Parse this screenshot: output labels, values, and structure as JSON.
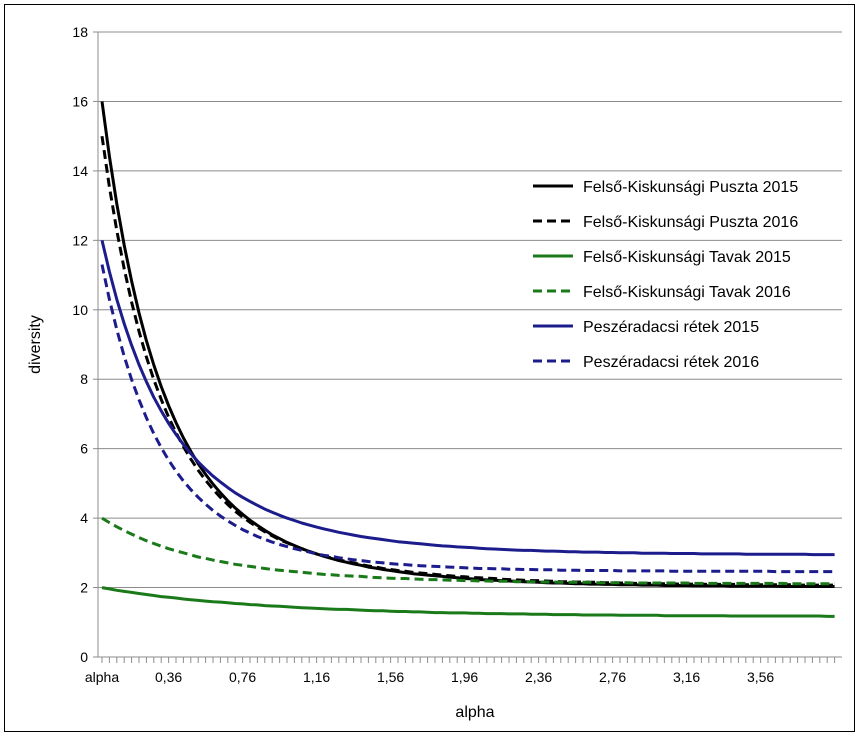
{
  "chart_data": {
    "type": "line",
    "xlabel": "alpha",
    "ylabel": "diversity",
    "ylim": [
      0,
      18
    ],
    "y_ticks": [
      0,
      2,
      4,
      6,
      8,
      10,
      12,
      14,
      16,
      18
    ],
    "xlim": [
      0,
      4
    ],
    "x_ticks": [
      0,
      0.36,
      0.76,
      1.16,
      1.56,
      1.96,
      2.36,
      2.76,
      3.16,
      3.56
    ],
    "x_tick_labels": [
      "alpha",
      "0,36",
      "0,76",
      "1,16",
      "1,56",
      "1,96",
      "2,36",
      "2,76",
      "3,16",
      "3,56"
    ],
    "grid": true,
    "legend_position": "right",
    "x": [
      0,
      0.04,
      0.08,
      0.12,
      0.16,
      0.2,
      0.24,
      0.28,
      0.32,
      0.36,
      0.4,
      0.44,
      0.48,
      0.52,
      0.56,
      0.6,
      0.64,
      0.68,
      0.72,
      0.76,
      0.8,
      0.84,
      0.88,
      0.92,
      0.96,
      1.0,
      1.04,
      1.08,
      1.12,
      1.16,
      1.2,
      1.24,
      1.28,
      1.32,
      1.36,
      1.4,
      1.44,
      1.48,
      1.52,
      1.56,
      1.6,
      1.64,
      1.68,
      1.72,
      1.76,
      1.8,
      1.84,
      1.88,
      1.92,
      1.96,
      2.0,
      2.04,
      2.08,
      2.12,
      2.16,
      2.2,
      2.24,
      2.28,
      2.32,
      2.36,
      2.4,
      2.44,
      2.48,
      2.52,
      2.56,
      2.6,
      2.64,
      2.68,
      2.72,
      2.76,
      2.8,
      2.84,
      2.88,
      2.92,
      2.96,
      3.0,
      3.04,
      3.08,
      3.12,
      3.16,
      3.2,
      3.24,
      3.28,
      3.32,
      3.36,
      3.4,
      3.44,
      3.48,
      3.52,
      3.56,
      3.6,
      3.64,
      3.68,
      3.72,
      3.76,
      3.8,
      3.84,
      3.88,
      3.92,
      3.96
    ],
    "series": [
      {
        "name": "Felső-Kiskunsági Puszta 2015",
        "color": "#000000",
        "dashed": false,
        "values": [
          16.0,
          14.42,
          13.05,
          11.86,
          10.83,
          9.91,
          9.11,
          8.41,
          7.79,
          7.24,
          6.75,
          6.31,
          5.92,
          5.57,
          5.26,
          4.98,
          4.73,
          4.5,
          4.29,
          4.11,
          3.94,
          3.79,
          3.65,
          3.52,
          3.41,
          3.3,
          3.21,
          3.12,
          3.04,
          2.97,
          2.9,
          2.84,
          2.78,
          2.73,
          2.68,
          2.64,
          2.59,
          2.56,
          2.52,
          2.49,
          2.46,
          2.43,
          2.4,
          2.38,
          2.36,
          2.34,
          2.32,
          2.3,
          2.28,
          2.26,
          2.25,
          2.23,
          2.22,
          2.21,
          2.2,
          2.19,
          2.18,
          2.17,
          2.16,
          2.15,
          2.14,
          2.13,
          2.13,
          2.12,
          2.11,
          2.11,
          2.1,
          2.1,
          2.09,
          2.09,
          2.08,
          2.08,
          2.08,
          2.07,
          2.07,
          2.07,
          2.06,
          2.06,
          2.06,
          2.06,
          2.05,
          2.05,
          2.05,
          2.05,
          2.05,
          2.04,
          2.04,
          2.04,
          2.04,
          2.04,
          2.04,
          2.04,
          2.03,
          2.03,
          2.03,
          2.03,
          2.03,
          2.03,
          2.03,
          2.03
        ]
      },
      {
        "name": "Felső-Kiskunsági Puszta 2016",
        "color": "#000000",
        "dashed": true,
        "values": [
          15.0,
          13.54,
          12.28,
          11.18,
          10.22,
          9.38,
          8.64,
          7.99,
          7.42,
          6.91,
          6.46,
          6.06,
          5.7,
          5.38,
          5.09,
          4.83,
          4.6,
          4.39,
          4.2,
          4.03,
          3.88,
          3.74,
          3.61,
          3.49,
          3.38,
          3.29,
          3.2,
          3.12,
          3.04,
          2.97,
          2.91,
          2.85,
          2.8,
          2.75,
          2.71,
          2.66,
          2.62,
          2.59,
          2.55,
          2.52,
          2.49,
          2.47,
          2.44,
          2.42,
          2.4,
          2.38,
          2.36,
          2.34,
          2.32,
          2.31,
          2.29,
          2.28,
          2.27,
          2.26,
          2.24,
          2.23,
          2.22,
          2.21,
          2.2,
          2.2,
          2.19,
          2.18,
          2.17,
          2.17,
          2.16,
          2.16,
          2.15,
          2.15,
          2.14,
          2.14,
          2.13,
          2.13,
          2.12,
          2.12,
          2.12,
          2.11,
          2.11,
          2.11,
          2.1,
          2.1,
          2.1,
          2.1,
          2.09,
          2.09,
          2.09,
          2.09,
          2.09,
          2.08,
          2.08,
          2.08,
          2.08,
          2.08,
          2.08,
          2.08,
          2.07,
          2.07,
          2.07,
          2.07,
          2.07,
          2.07
        ]
      },
      {
        "name": "Felső-Kiskunsági Tavak 2015",
        "color": "#1a7a1a",
        "dashed": false,
        "values": [
          2.0,
          1.96,
          1.92,
          1.89,
          1.86,
          1.83,
          1.8,
          1.77,
          1.74,
          1.72,
          1.7,
          1.67,
          1.65,
          1.63,
          1.61,
          1.59,
          1.58,
          1.56,
          1.54,
          1.53,
          1.51,
          1.5,
          1.48,
          1.47,
          1.46,
          1.45,
          1.43,
          1.42,
          1.41,
          1.4,
          1.39,
          1.38,
          1.37,
          1.37,
          1.36,
          1.35,
          1.34,
          1.33,
          1.33,
          1.32,
          1.31,
          1.31,
          1.3,
          1.3,
          1.29,
          1.28,
          1.28,
          1.27,
          1.27,
          1.27,
          1.26,
          1.26,
          1.25,
          1.25,
          1.25,
          1.24,
          1.24,
          1.24,
          1.23,
          1.23,
          1.23,
          1.22,
          1.22,
          1.22,
          1.22,
          1.21,
          1.21,
          1.21,
          1.21,
          1.21,
          1.2,
          1.2,
          1.2,
          1.2,
          1.2,
          1.2,
          1.19,
          1.19,
          1.19,
          1.19,
          1.19,
          1.19,
          1.19,
          1.19,
          1.19,
          1.18,
          1.18,
          1.18,
          1.18,
          1.18,
          1.18,
          1.18,
          1.18,
          1.18,
          1.18,
          1.18,
          1.18,
          1.18,
          1.17,
          1.17
        ]
      },
      {
        "name": "Felső-Kiskunsági Tavak 2016",
        "color": "#1a7a1a",
        "dashed": true,
        "values": [
          4.0,
          3.87,
          3.75,
          3.64,
          3.54,
          3.44,
          3.35,
          3.27,
          3.19,
          3.12,
          3.06,
          3.0,
          2.94,
          2.88,
          2.84,
          2.79,
          2.75,
          2.71,
          2.67,
          2.64,
          2.61,
          2.58,
          2.55,
          2.52,
          2.5,
          2.48,
          2.46,
          2.44,
          2.42,
          2.4,
          2.38,
          2.37,
          2.35,
          2.34,
          2.33,
          2.32,
          2.3,
          2.29,
          2.28,
          2.27,
          2.26,
          2.26,
          2.25,
          2.24,
          2.23,
          2.23,
          2.22,
          2.21,
          2.21,
          2.2,
          2.2,
          2.19,
          2.19,
          2.18,
          2.18,
          2.18,
          2.17,
          2.17,
          2.17,
          2.16,
          2.16,
          2.16,
          2.15,
          2.15,
          2.15,
          2.15,
          2.15,
          2.14,
          2.14,
          2.14,
          2.14,
          2.14,
          2.13,
          2.13,
          2.13,
          2.13,
          2.13,
          2.13,
          2.13,
          2.13,
          2.12,
          2.12,
          2.12,
          2.12,
          2.12,
          2.12,
          2.12,
          2.12,
          2.12,
          2.12,
          2.12,
          2.12,
          2.12,
          2.11,
          2.11,
          2.11,
          2.11,
          2.11,
          2.11,
          2.11
        ]
      },
      {
        "name": "Peszéradacsi rétek 2015",
        "color": "#1c1c8c",
        "dashed": false,
        "values": [
          12.0,
          11.1,
          10.3,
          9.6,
          8.98,
          8.42,
          7.93,
          7.48,
          7.09,
          6.73,
          6.41,
          6.12,
          5.86,
          5.62,
          5.41,
          5.21,
          5.04,
          4.88,
          4.73,
          4.6,
          4.48,
          4.37,
          4.26,
          4.17,
          4.08,
          4.0,
          3.93,
          3.86,
          3.8,
          3.74,
          3.69,
          3.64,
          3.59,
          3.55,
          3.51,
          3.47,
          3.44,
          3.41,
          3.38,
          3.35,
          3.32,
          3.3,
          3.28,
          3.26,
          3.24,
          3.22,
          3.2,
          3.19,
          3.17,
          3.16,
          3.15,
          3.13,
          3.12,
          3.11,
          3.1,
          3.09,
          3.08,
          3.07,
          3.07,
          3.06,
          3.05,
          3.05,
          3.04,
          3.03,
          3.03,
          3.02,
          3.02,
          3.02,
          3.01,
          3.01,
          3.0,
          3.0,
          3.0,
          2.99,
          2.99,
          2.99,
          2.99,
          2.98,
          2.98,
          2.98,
          2.98,
          2.97,
          2.97,
          2.97,
          2.97,
          2.97,
          2.97,
          2.96,
          2.96,
          2.96,
          2.96,
          2.96,
          2.96,
          2.96,
          2.96,
          2.96,
          2.95,
          2.95,
          2.95,
          2.95
        ]
      },
      {
        "name": "Peszéradacsi rétek 2016",
        "color": "#1c1c8c",
        "dashed": true,
        "values": [
          11.3,
          10.3,
          9.43,
          8.66,
          7.99,
          7.41,
          6.89,
          6.43,
          6.03,
          5.67,
          5.35,
          5.07,
          4.82,
          4.6,
          4.4,
          4.22,
          4.06,
          3.92,
          3.79,
          3.67,
          3.57,
          3.47,
          3.39,
          3.31,
          3.24,
          3.18,
          3.12,
          3.07,
          3.02,
          2.97,
          2.93,
          2.9,
          2.86,
          2.83,
          2.8,
          2.78,
          2.75,
          2.73,
          2.71,
          2.69,
          2.67,
          2.66,
          2.64,
          2.63,
          2.62,
          2.61,
          2.6,
          2.59,
          2.58,
          2.57,
          2.56,
          2.55,
          2.55,
          2.54,
          2.54,
          2.53,
          2.53,
          2.52,
          2.52,
          2.51,
          2.51,
          2.51,
          2.5,
          2.5,
          2.5,
          2.49,
          2.49,
          2.49,
          2.49,
          2.49,
          2.48,
          2.48,
          2.48,
          2.48,
          2.48,
          2.48,
          2.48,
          2.47,
          2.47,
          2.47,
          2.47,
          2.47,
          2.47,
          2.47,
          2.47,
          2.47,
          2.47,
          2.47,
          2.47,
          2.47,
          2.47,
          2.46,
          2.46,
          2.46,
          2.46,
          2.46,
          2.46,
          2.46,
          2.46,
          2.46
        ]
      }
    ]
  }
}
